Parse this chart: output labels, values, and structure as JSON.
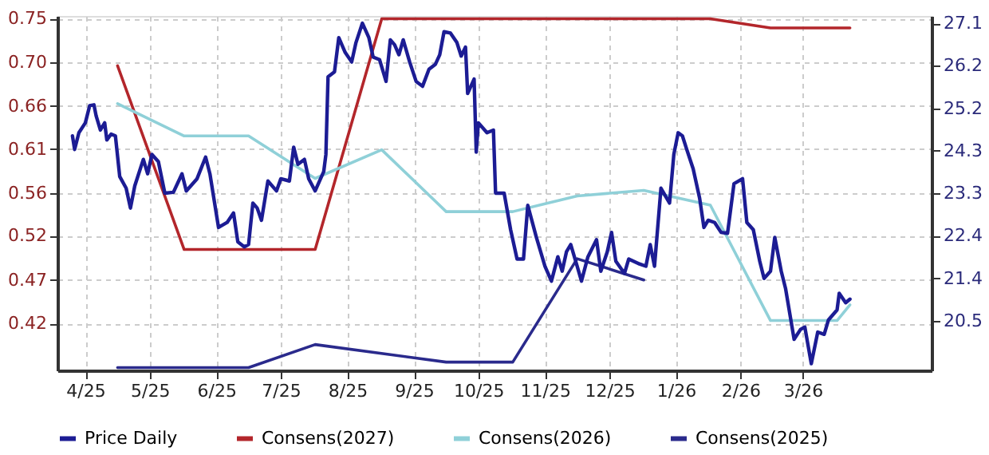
{
  "chart_data": {
    "type": "line",
    "xlim": [
      "2025-04-03",
      "2026-05-15"
    ],
    "xticks": [
      {
        "value": "2025-04-16",
        "label": "4/25"
      },
      {
        "value": "2025-05-16",
        "label": "5/25"
      },
      {
        "value": "2025-06-16",
        "label": "6/25"
      },
      {
        "value": "2025-07-16",
        "label": "7/25"
      },
      {
        "value": "2025-08-16",
        "label": "8/25"
      },
      {
        "value": "2025-09-16",
        "label": "9/25"
      },
      {
        "value": "2025-10-16",
        "label": "10/25"
      },
      {
        "value": "2025-11-16",
        "label": "11/25"
      },
      {
        "value": "2025-12-16",
        "label": "12/25"
      },
      {
        "value": "2026-01-16",
        "label": "1/26"
      },
      {
        "value": "2026-02-15",
        "label": "2/26"
      },
      {
        "value": "2026-03-16",
        "label": "3/26"
      }
    ],
    "ylim": [
      0.369,
      0.753
    ],
    "yticks": [
      0.42,
      {
        "value": 0.4671,
        "label": "0.47"
      },
      {
        "value": 0.515,
        "label": "0.52"
      },
      {
        "value": 0.5614,
        "label": "0.56"
      },
      {
        "value": 0.6086,
        "label": "0.61"
      },
      {
        "value": 0.6557,
        "label": "0.66"
      },
      {
        "value": 0.7029,
        "label": "0.70"
      },
      0.75
    ],
    "y2lim": [
      19.4,
      27.26
    ],
    "y2ticks": [
      20.5,
      {
        "value": 21.443,
        "label": "21.4"
      },
      {
        "value": 22.386,
        "label": "22.4"
      },
      {
        "value": 23.329,
        "label": "23.3"
      },
      {
        "value": 24.271,
        "label": "24.3"
      },
      {
        "value": 25.214,
        "label": "25.2"
      },
      {
        "value": 26.157,
        "label": "26.2"
      },
      27.1
    ],
    "grid": true,
    "legend": "bottom",
    "marker": "none",
    "line_style": "solid",
    "series": [
      {
        "name": "Price Daily",
        "color": "#1c1c94",
        "axis": "y2",
        "x": [
          "2025-04-10",
          "2025-04-11",
          "2025-04-13",
          "2025-04-16",
          "2025-04-18",
          "2025-04-20",
          "2025-04-21",
          "2025-04-23",
          "2025-04-25",
          "2025-04-26",
          "2025-04-28",
          "2025-04-30",
          "2025-05-02",
          "2025-05-05",
          "2025-05-07",
          "2025-05-09",
          "2025-05-13",
          "2025-05-15",
          "2025-05-17",
          "2025-05-20",
          "2025-05-23",
          "2025-05-27",
          "2025-05-31",
          "2025-06-02",
          "2025-06-07",
          "2025-06-11",
          "2025-06-13",
          "2025-06-17",
          "2025-06-21",
          "2025-06-24",
          "2025-06-26",
          "2025-06-29",
          "2025-07-01",
          "2025-07-03",
          "2025-07-05",
          "2025-07-07",
          "2025-07-10",
          "2025-07-14",
          "2025-07-16",
          "2025-07-20",
          "2025-07-22",
          "2025-07-24",
          "2025-07-27",
          "2025-07-29",
          "2025-08-01",
          "2025-08-05",
          "2025-08-06",
          "2025-08-07",
          "2025-08-10",
          "2025-08-12",
          "2025-08-15",
          "2025-08-18",
          "2025-08-20",
          "2025-08-23",
          "2025-08-26",
          "2025-08-28",
          "2025-08-31",
          "2025-09-03",
          "2025-09-05",
          "2025-09-07",
          "2025-09-09",
          "2025-09-11",
          "2025-09-14",
          "2025-09-17",
          "2025-09-20",
          "2025-09-23",
          "2025-09-26",
          "2025-09-28",
          "2025-09-30",
          "2025-10-03",
          "2025-10-06",
          "2025-10-08",
          "2025-10-10",
          "2025-10-11",
          "2025-10-14",
          "2025-10-15",
          "2025-10-16",
          "2025-10-20",
          "2025-10-23",
          "2025-10-24",
          "2025-10-28",
          "2025-10-31",
          "2025-11-03",
          "2025-11-06",
          "2025-11-08",
          "2025-11-12",
          "2025-11-16",
          "2025-11-19",
          "2025-11-22",
          "2025-11-24",
          "2025-11-26",
          "2025-11-28",
          "2025-12-01",
          "2025-12-03",
          "2025-12-06",
          "2025-12-10",
          "2025-12-12",
          "2025-12-15",
          "2025-12-17",
          "2025-12-19",
          "2025-12-23",
          "2025-12-25",
          "2025-12-30",
          "2026-01-02",
          "2026-01-04",
          "2026-01-06",
          "2026-01-09",
          "2026-01-13",
          "2026-01-15",
          "2026-01-17",
          "2026-01-19",
          "2026-01-21",
          "2026-01-24",
          "2026-01-27",
          "2026-01-29",
          "2026-01-31",
          "2026-02-03",
          "2026-02-06",
          "2026-02-09",
          "2026-02-12",
          "2026-02-16",
          "2026-02-18",
          "2026-02-21",
          "2026-02-24",
          "2026-02-26",
          "2026-03-01",
          "2026-03-03",
          "2026-03-06",
          "2026-03-08",
          "2026-03-12",
          "2026-03-15",
          "2026-03-17",
          "2026-03-20",
          "2026-03-23",
          "2026-03-26",
          "2026-03-28",
          "2026-04-01",
          "2026-04-02",
          "2026-04-05",
          "2026-04-07"
        ],
        "values": [
          24.6,
          24.3,
          24.67,
          24.89,
          25.27,
          25.29,
          25.05,
          24.73,
          24.89,
          24.51,
          24.64,
          24.6,
          23.7,
          23.44,
          23.0,
          23.49,
          24.08,
          23.76,
          24.19,
          24.03,
          23.33,
          23.35,
          23.76,
          23.38,
          23.65,
          24.13,
          23.76,
          22.57,
          22.68,
          22.89,
          22.25,
          22.14,
          22.19,
          23.11,
          23.0,
          22.73,
          23.6,
          23.38,
          23.65,
          23.6,
          24.35,
          23.97,
          24.08,
          23.65,
          23.38,
          23.81,
          24.19,
          25.91,
          26.02,
          26.78,
          26.45,
          26.24,
          26.67,
          27.1,
          26.78,
          26.35,
          26.29,
          25.81,
          26.73,
          26.62,
          26.4,
          26.73,
          26.24,
          25.81,
          25.7,
          26.08,
          26.19,
          26.4,
          26.91,
          26.88,
          26.67,
          26.37,
          26.57,
          25.54,
          25.86,
          24.24,
          24.89,
          24.67,
          24.73,
          23.33,
          23.33,
          22.52,
          21.87,
          21.87,
          23.06,
          22.35,
          21.71,
          21.38,
          21.92,
          21.6,
          22.03,
          22.19,
          21.71,
          21.38,
          21.92,
          22.3,
          21.6,
          22.03,
          22.46,
          21.82,
          21.55,
          21.87,
          21.76,
          21.71,
          22.19,
          21.71,
          23.44,
          23.11,
          24.19,
          24.67,
          24.6,
          24.3,
          23.87,
          23.22,
          22.57,
          22.73,
          22.68,
          22.46,
          22.44,
          23.54,
          23.65,
          22.68,
          22.52,
          21.82,
          21.44,
          21.6,
          22.35,
          21.6,
          21.22,
          20.09,
          20.31,
          20.36,
          19.55,
          20.25,
          20.2,
          20.52,
          20.74,
          21.11,
          20.9,
          20.98
        ]
      },
      {
        "name": "Consens(2027)",
        "color": "#b3262b",
        "x": [
          "2025-05-01",
          "2025-06-01",
          "2025-08-01",
          "2025-09-01",
          "2026-02-01",
          "2026-03-01",
          "2026-04-07"
        ],
        "values": [
          0.699,
          0.5,
          0.5,
          0.75,
          0.75,
          0.74,
          0.74
        ]
      },
      {
        "name": "Consens(2026)",
        "color": "#8fd0d8",
        "x": [
          "2025-05-01",
          "2025-06-01",
          "2025-07-01",
          "2025-08-01",
          "2025-09-01",
          "2025-10-01",
          "2025-11-01",
          "2025-12-01",
          "2026-01-01",
          "2026-02-01",
          "2026-03-01",
          "2026-04-01",
          "2026-04-07"
        ],
        "values": [
          0.658,
          0.623,
          0.623,
          0.577,
          0.608,
          0.541,
          0.541,
          0.558,
          0.564,
          0.548,
          0.423,
          0.423,
          0.44
        ]
      },
      {
        "name": "Consens(2025)",
        "color": "#2a2a8c",
        "x": [
          "2025-05-01",
          "2025-07-01",
          "2025-08-01",
          "2025-10-01",
          "2025-11-01",
          "2025-12-01",
          "2026-01-01"
        ],
        "values": [
          0.372,
          0.372,
          0.397,
          0.378,
          0.378,
          0.49,
          0.467
        ]
      }
    ]
  }
}
